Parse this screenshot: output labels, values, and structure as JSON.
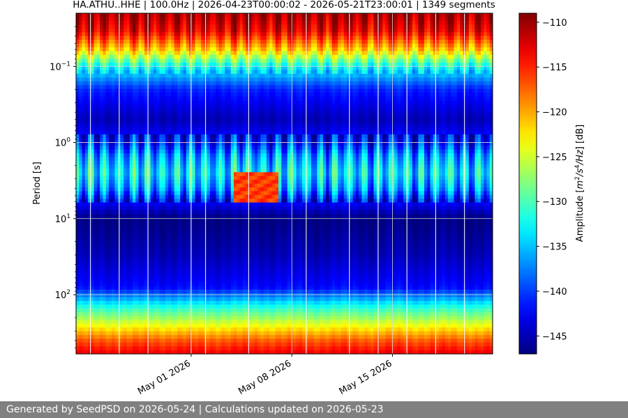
{
  "chart_data": {
    "type": "heatmap",
    "title": "HA.ATHU..HHE | 100.0Hz | 2026-04-23T00:00:02 - 2026-05-21T23:00:01 | 1349 segments",
    "xlabel": "",
    "ylabel": "Period [s]",
    "y_scale": "log",
    "y_inverted": true,
    "x_range": [
      "2026-04-23",
      "2026-05-21"
    ],
    "y_range": [
      0.02,
      600
    ],
    "x_ticks": [
      {
        "date": "2026-05-01",
        "label": "May 01 2026"
      },
      {
        "date": "2026-05-08",
        "label": "May 08 2026"
      },
      {
        "date": "2026-05-15",
        "label": "May 15 2026"
      }
    ],
    "y_ticks": [
      {
        "value": 0.1,
        "base": "10",
        "exp": "−1"
      },
      {
        "value": 1,
        "base": "10",
        "exp": "0"
      },
      {
        "value": 10,
        "base": "10",
        "exp": "1"
      },
      {
        "value": 100,
        "base": "10",
        "exp": "2"
      }
    ],
    "grid": true,
    "colorbar": {
      "label_prefix": "Amplitude [",
      "label_unit_m": "m",
      "label_unit_m_exp": "2",
      "label_unit_s": "/s",
      "label_unit_s_exp": "4",
      "label_unit_hz": "/Hz",
      "label_suffix": "] [dB]",
      "min": -147,
      "max": -109,
      "ticks": [
        -110,
        -115,
        -120,
        -125,
        -130,
        -135,
        -140,
        -145
      ],
      "tick_labels": [
        "−110",
        "−115",
        "−120",
        "−125",
        "−130",
        "−135",
        "−140",
        "−145"
      ],
      "colormap": "jet"
    },
    "noise_profile": [
      {
        "period": 0.02,
        "db": -110
      },
      {
        "period": 0.035,
        "db": -113
      },
      {
        "period": 0.06,
        "db": -121
      },
      {
        "period": 0.1,
        "db": -132
      },
      {
        "period": 0.2,
        "db": -141
      },
      {
        "period": 0.5,
        "db": -145
      },
      {
        "period": 1.0,
        "db": -141
      },
      {
        "period": 1.5,
        "db": -136
      },
      {
        "period": 2.5,
        "db": -133
      },
      {
        "period": 4.0,
        "db": -136
      },
      {
        "period": 6.0,
        "db": -142
      },
      {
        "period": 10,
        "db": -147
      },
      {
        "period": 30,
        "db": -145
      },
      {
        "period": 80,
        "db": -142
      },
      {
        "period": 150,
        "db": -131
      },
      {
        "period": 250,
        "db": -124
      },
      {
        "period": 400,
        "db": -117
      },
      {
        "period": 600,
        "db": -113
      }
    ],
    "microseism_event": {
      "start": "2026-05-04",
      "end": "2026-05-07",
      "period_min": 2.5,
      "period_max": 6.0,
      "db": -116
    },
    "data_gaps": [
      "2026-04-24",
      "2026-04-26",
      "2026-04-28",
      "2026-05-01",
      "2026-05-02",
      "2026-05-05",
      "2026-05-09",
      "2026-05-12",
      "2026-05-14",
      "2026-05-16",
      "2026-05-18",
      "2026-05-20"
    ]
  },
  "footer": {
    "text": "Generated by SeedPSD on 2026-05-24 | Calculations updated on 2026-05-23"
  }
}
